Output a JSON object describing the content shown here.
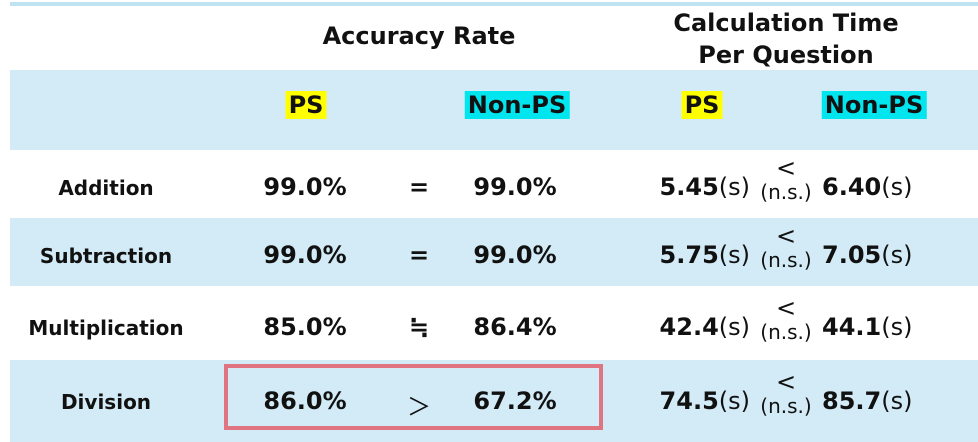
{
  "header": {
    "accuracy_title": "Accuracy Rate",
    "time_title_line1": "Calculation Time",
    "time_title_line2": "Per Question"
  },
  "subheader": {
    "ps": "PS",
    "non_ps": "Non-PS",
    "ps_time": "PS",
    "non_ps_time": "Non-PS"
  },
  "rows": [
    {
      "op": "Addition",
      "ps_acc": "99.0%",
      "cmp": "=",
      "nonps_acc": "99.0%",
      "ps_time": "5.45",
      "nonps_time": "6.40"
    },
    {
      "op": "Subtraction",
      "ps_acc": "99.0%",
      "cmp": "=",
      "nonps_acc": "99.0%",
      "ps_time": "5.75",
      "nonps_time": "7.05"
    },
    {
      "op": "Multiplication",
      "ps_acc": "85.0%",
      "cmp": "≒",
      "nonps_acc": "86.4%",
      "ps_time": "42.4",
      "nonps_time": "44.1"
    },
    {
      "op": "Division",
      "ps_acc": "86.0%",
      "cmp": "＞",
      "nonps_acc": "67.2%",
      "ps_time": "74.5",
      "nonps_time": "85.7"
    }
  ],
  "time_unit": "(s)",
  "time_cmp": "<",
  "time_sig": "(n.s.)",
  "colors": {
    "band": "#d2ebf6",
    "ps_tag": "#ffff00",
    "nonps_tag": "#00e5ee",
    "highlight_box": "#e07480"
  }
}
